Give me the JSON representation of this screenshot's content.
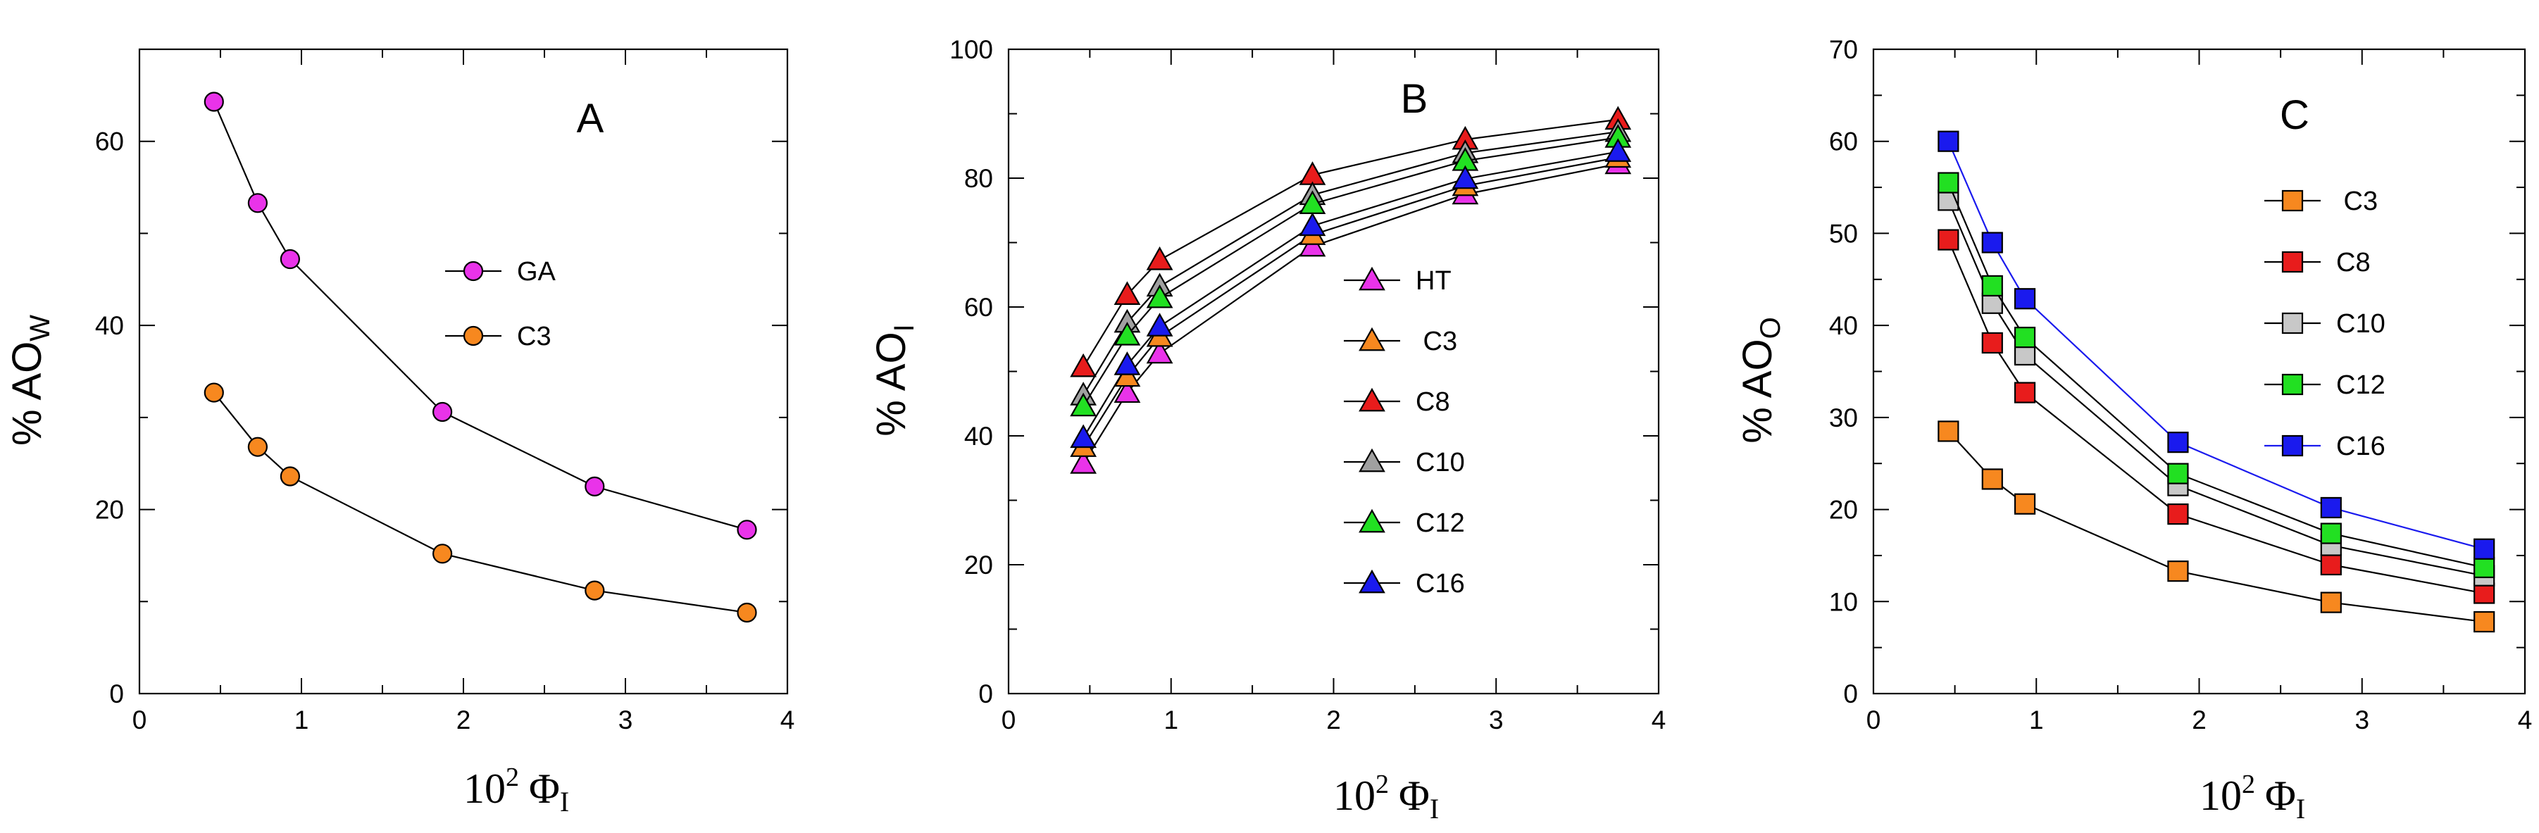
{
  "chart_data": [
    {
      "panel": "A",
      "type": "line",
      "title": "A",
      "xlabel": {
        "base": "10",
        "exp": "2",
        "sym": "Φ",
        "sub": "I"
      },
      "ylabel": {
        "main": "% AO",
        "sub": "W"
      },
      "xlim": [
        0,
        4
      ],
      "ylim": [
        0,
        70
      ],
      "xticks": [
        0,
        1,
        2,
        3,
        4
      ],
      "yticks": [
        0,
        20,
        40,
        60
      ],
      "marker": "circle",
      "x": [
        0.46,
        0.73,
        0.93,
        1.87,
        2.81,
        3.75
      ],
      "series": [
        {
          "name": "GA",
          "color": "#e933e9",
          "line": "#000000",
          "values": [
            64.3,
            53.3,
            47.2,
            30.6,
            22.5,
            17.8
          ]
        },
        {
          "name": "C3",
          "color": "#f7881f",
          "line": "#000000",
          "values": [
            32.7,
            26.8,
            23.6,
            15.2,
            11.2,
            8.8
          ]
        }
      ]
    },
    {
      "panel": "B",
      "type": "line",
      "title": "B",
      "xlabel": {
        "base": "10",
        "exp": "2",
        "sym": "Φ",
        "sub": "I"
      },
      "ylabel": {
        "main": "% AO",
        "sub": "I"
      },
      "xlim": [
        0,
        4
      ],
      "ylim": [
        0,
        100
      ],
      "xticks": [
        0,
        1,
        2,
        3,
        4
      ],
      "yticks": [
        0,
        20,
        40,
        60,
        80,
        100
      ],
      "marker": "triangle",
      "x": [
        0.46,
        0.73,
        0.93,
        1.87,
        2.81,
        3.75
      ],
      "series": [
        {
          "name": "HT",
          "color": "#e933e9",
          "line": "#000000",
          "values": [
            35.7,
            46.7,
            52.8,
            69.4,
            77.5,
            82.2
          ]
        },
        {
          "name": " C3",
          "color": "#f7881f",
          "line": "#000000",
          "values": [
            38.3,
            49.2,
            55.4,
            71.2,
            78.8,
            83.2
          ]
        },
        {
          "name": "C8",
          "color": "#e81c1c",
          "line": "#000000",
          "values": [
            50.7,
            61.9,
            67.3,
            80.5,
            86.0,
            89.1
          ]
        },
        {
          "name": "C10",
          "color": "#a0a0a0",
          "line": "#000000",
          "values": [
            46.3,
            57.6,
            63.2,
            77.4,
            83.9,
            87.2
          ]
        },
        {
          "name": "C12",
          "color": "#22e022",
          "line": "#000000",
          "values": [
            44.6,
            55.6,
            61.4,
            76.0,
            82.7,
            86.3
          ]
        },
        {
          "name": "C16",
          "color": "#1a1aee",
          "line": "#000000",
          "values": [
            39.7,
            51.0,
            57.0,
            72.6,
            79.9,
            84.1
          ]
        }
      ]
    },
    {
      "panel": "C",
      "type": "line",
      "title": "C",
      "xlabel": {
        "base": "10",
        "exp": "2",
        "sym": "Φ",
        "sub": "I"
      },
      "ylabel": {
        "main": "% AO",
        "sub": "O"
      },
      "xlim": [
        0,
        4
      ],
      "ylim": [
        0,
        70
      ],
      "xticks": [
        0,
        1,
        2,
        3,
        4
      ],
      "yticks": [
        0,
        10,
        20,
        30,
        40,
        50,
        60,
        70
      ],
      "marker": "square",
      "x": [
        0.46,
        0.73,
        0.93,
        1.87,
        2.81,
        3.75
      ],
      "series": [
        {
          "name": " C3",
          "color": "#f7881f",
          "line": "#000000",
          "values": [
            28.5,
            23.3,
            20.6,
            13.3,
            9.9,
            7.8
          ]
        },
        {
          "name": "C8",
          "color": "#e81c1c",
          "line": "#000000",
          "values": [
            49.3,
            38.1,
            32.7,
            19.5,
            14.0,
            10.9
          ]
        },
        {
          "name": "C10",
          "color": "#c8c8c8",
          "line": "#000000",
          "values": [
            53.6,
            42.4,
            36.8,
            22.6,
            16.1,
            12.8
          ]
        },
        {
          "name": "C12",
          "color": "#22e022",
          "line": "#000000",
          "values": [
            55.5,
            44.3,
            38.7,
            23.9,
            17.4,
            13.7
          ]
        },
        {
          "name": "C16",
          "color": "#1a1aee",
          "line": "#1a1aee",
          "values": [
            60.0,
            49.0,
            42.9,
            27.3,
            20.2,
            15.7
          ]
        }
      ]
    }
  ]
}
